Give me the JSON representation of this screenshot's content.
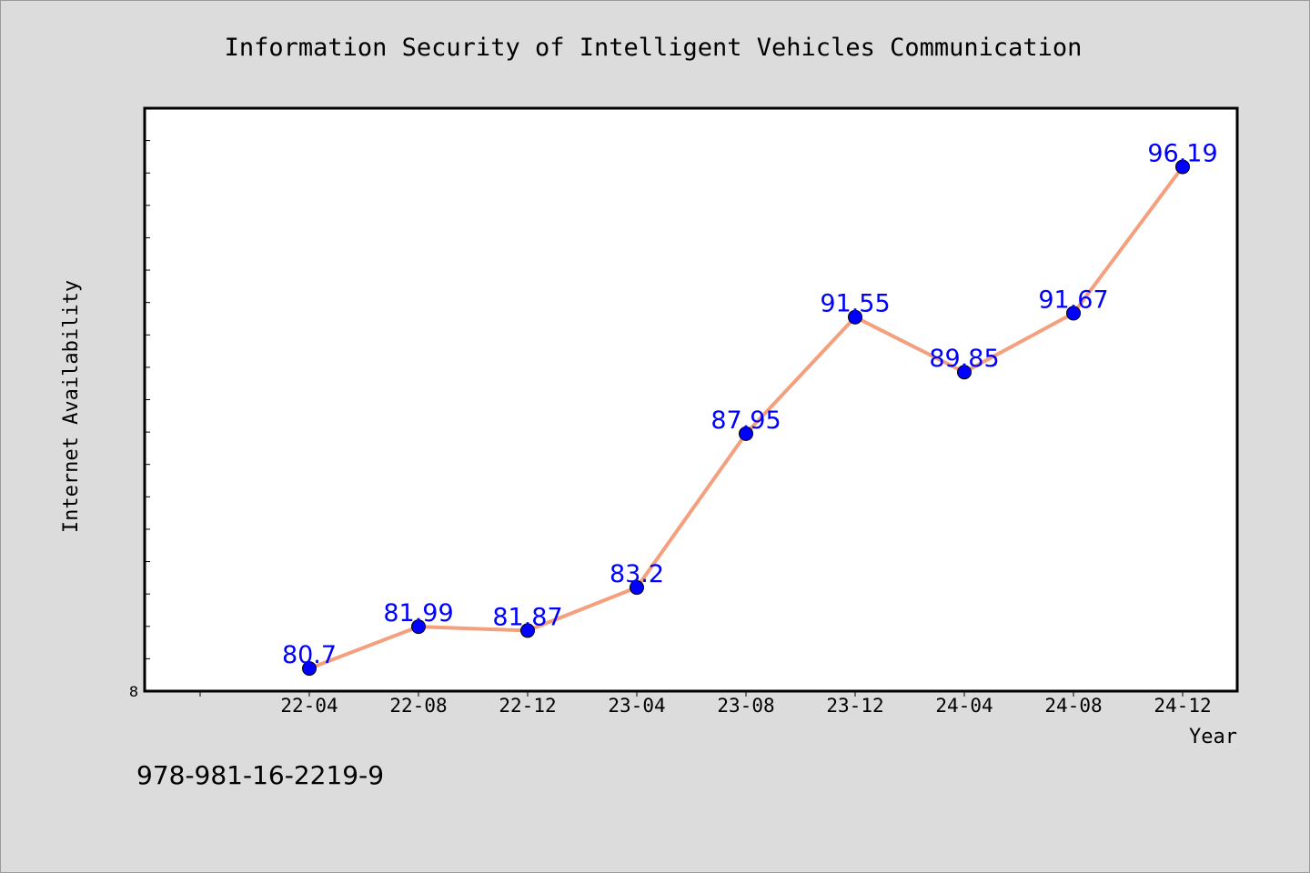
{
  "chart_data": {
    "type": "line",
    "title": "Information Security of Intelligent Vehicles Communication",
    "xlabel": "Year",
    "ylabel": "Internet Availability",
    "categories": [
      "22-04",
      "22-08",
      "22-12",
      "23-04",
      "23-08",
      "23-12",
      "24-04",
      "24-08",
      "24-12"
    ],
    "series": [
      {
        "values": [
          80.7,
          81.99,
          81.87,
          83.2,
          87.95,
          91.55,
          89.85,
          91.67,
          96.19
        ],
        "labels": [
          "80.7",
          "81.99",
          "81.87",
          "83.2",
          "87.95",
          "91.55",
          "89.85",
          "91.67",
          "96.19"
        ]
      }
    ],
    "ylim": [
      80,
      98
    ],
    "y_tick_label": "8",
    "grid": false,
    "legend": "none",
    "colors": {
      "line": "#f4a07e",
      "marker": "#0000ff",
      "data_label": "#0000ff",
      "plot_background": "#ffffff",
      "figure_background": "#dcdcdc"
    }
  },
  "footer_text": "978-981-16-2219-9"
}
